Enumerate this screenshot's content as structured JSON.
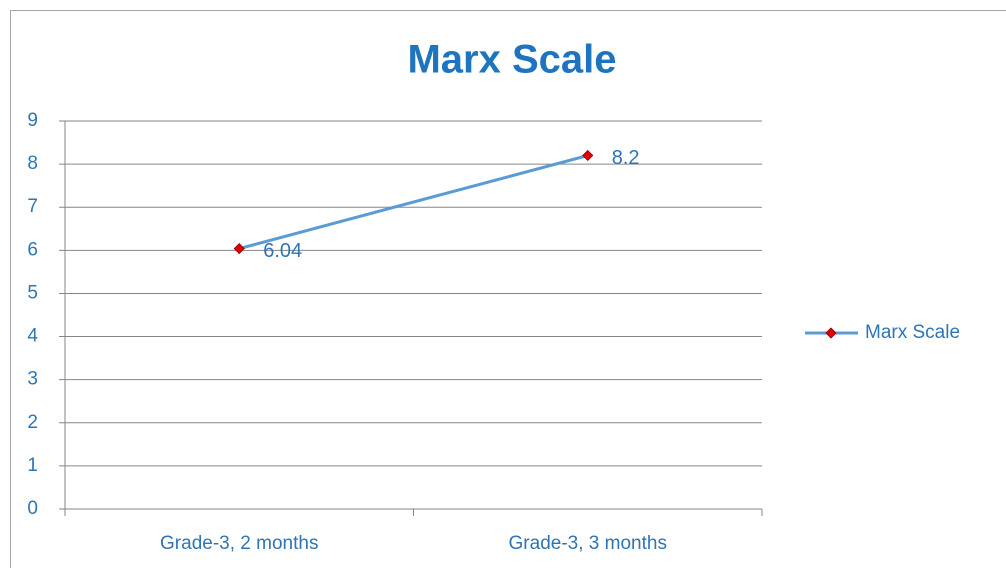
{
  "chart_data": {
    "type": "line",
    "title": "Marx Scale",
    "categories": [
      "Grade-3, 2 months",
      "Grade-3, 3 months"
    ],
    "series": [
      {
        "name": "Marx Scale",
        "color": "#5b9bd5",
        "marker_color": "#e00000",
        "values": [
          6.04,
          8.2
        ]
      }
    ],
    "ylim": [
      0,
      9
    ],
    "yticks": [
      0,
      1,
      2,
      3,
      4,
      5,
      6,
      7,
      8,
      9
    ],
    "grid": true,
    "legend": "right",
    "data_labels": true
  }
}
